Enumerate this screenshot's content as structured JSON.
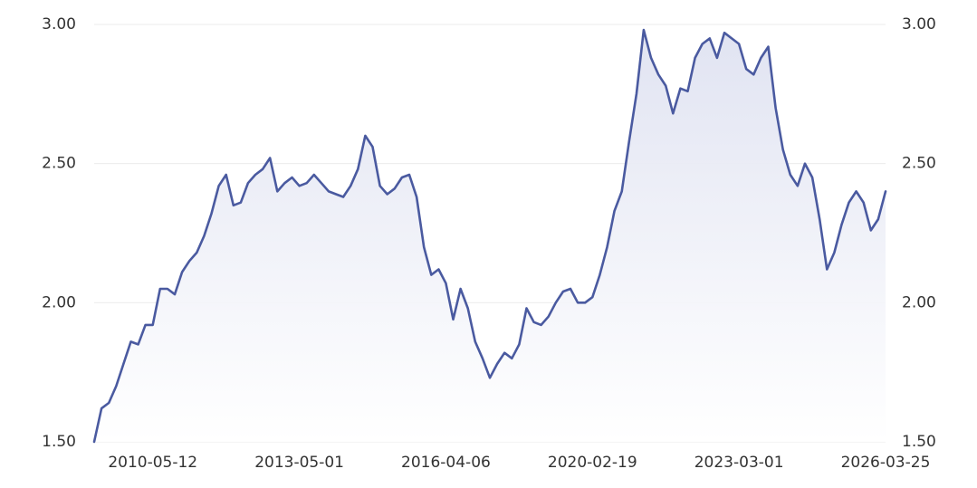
{
  "chart_data": {
    "type": "line",
    "categories": [
      null,
      null,
      null,
      null,
      null,
      null,
      null,
      null,
      "2010-05-12",
      null,
      null,
      null,
      null,
      null,
      null,
      null,
      null,
      null,
      null,
      null,
      null,
      null,
      null,
      null,
      null,
      null,
      null,
      null,
      "2013-05-01",
      null,
      null,
      null,
      null,
      null,
      null,
      null,
      null,
      null,
      null,
      null,
      null,
      null,
      null,
      null,
      null,
      null,
      null,
      null,
      "2016-04-06",
      null,
      null,
      null,
      null,
      null,
      null,
      null,
      null,
      null,
      null,
      null,
      null,
      null,
      null,
      null,
      null,
      null,
      null,
      null,
      "2020-02-19",
      null,
      null,
      null,
      null,
      null,
      null,
      null,
      null,
      null,
      null,
      null,
      null,
      null,
      null,
      null,
      null,
      null,
      null,
      null,
      "2023-03-01",
      null,
      null,
      null,
      null,
      null,
      null,
      null,
      null,
      null,
      null,
      null,
      null,
      null,
      null,
      null,
      null,
      null,
      null,
      null,
      "2026-03-25"
    ],
    "series": [
      {
        "color": "#4a5aa0",
        "values": [
          1.5,
          1.62,
          1.64,
          1.7,
          1.78,
          1.86,
          1.85,
          1.92,
          1.92,
          2.05,
          2.05,
          2.03,
          2.11,
          2.15,
          2.18,
          2.24,
          2.32,
          2.42,
          2.46,
          2.35,
          2.36,
          2.43,
          2.46,
          2.48,
          2.52,
          2.4,
          2.43,
          2.45,
          2.42,
          2.43,
          2.46,
          2.43,
          2.4,
          2.39,
          2.38,
          2.42,
          2.48,
          2.6,
          2.56,
          2.42,
          2.39,
          2.41,
          2.45,
          2.46,
          2.38,
          2.2,
          2.1,
          2.12,
          2.07,
          1.94,
          2.05,
          1.98,
          1.86,
          1.8,
          1.73,
          1.78,
          1.82,
          1.8,
          1.85,
          1.98,
          1.93,
          1.92,
          1.95,
          2.0,
          2.04,
          2.05,
          2.0,
          2.0,
          2.02,
          2.1,
          2.2,
          2.33,
          2.4,
          2.58,
          2.75,
          2.98,
          2.88,
          2.82,
          2.78,
          2.68,
          2.77,
          2.76,
          2.88,
          2.93,
          2.95,
          2.88,
          2.97,
          2.95,
          2.93,
          2.84,
          2.82,
          2.88,
          2.92,
          2.7,
          2.55,
          2.46,
          2.42,
          2.5,
          2.45,
          2.3,
          2.12,
          2.18,
          2.28,
          2.36,
          2.4,
          2.36,
          2.26,
          2.3,
          2.4
        ]
      }
    ],
    "ylim": [
      1.5,
      3.0
    ],
    "yticks": [
      {
        "value": 1.5,
        "label": "1.50"
      },
      {
        "value": 2.0,
        "label": "2.00"
      },
      {
        "value": 2.5,
        "label": "2.50"
      },
      {
        "value": 3.0,
        "label": "3.00"
      }
    ],
    "y2lim": [
      1.5,
      3.0
    ],
    "y2ticks": [
      {
        "value": 1.5,
        "label": "1.50"
      },
      {
        "value": 2.0,
        "label": "2.00"
      },
      {
        "value": 2.5,
        "label": "2.50"
      },
      {
        "value": 3.0,
        "label": "3.00"
      }
    ],
    "grid": true
  }
}
